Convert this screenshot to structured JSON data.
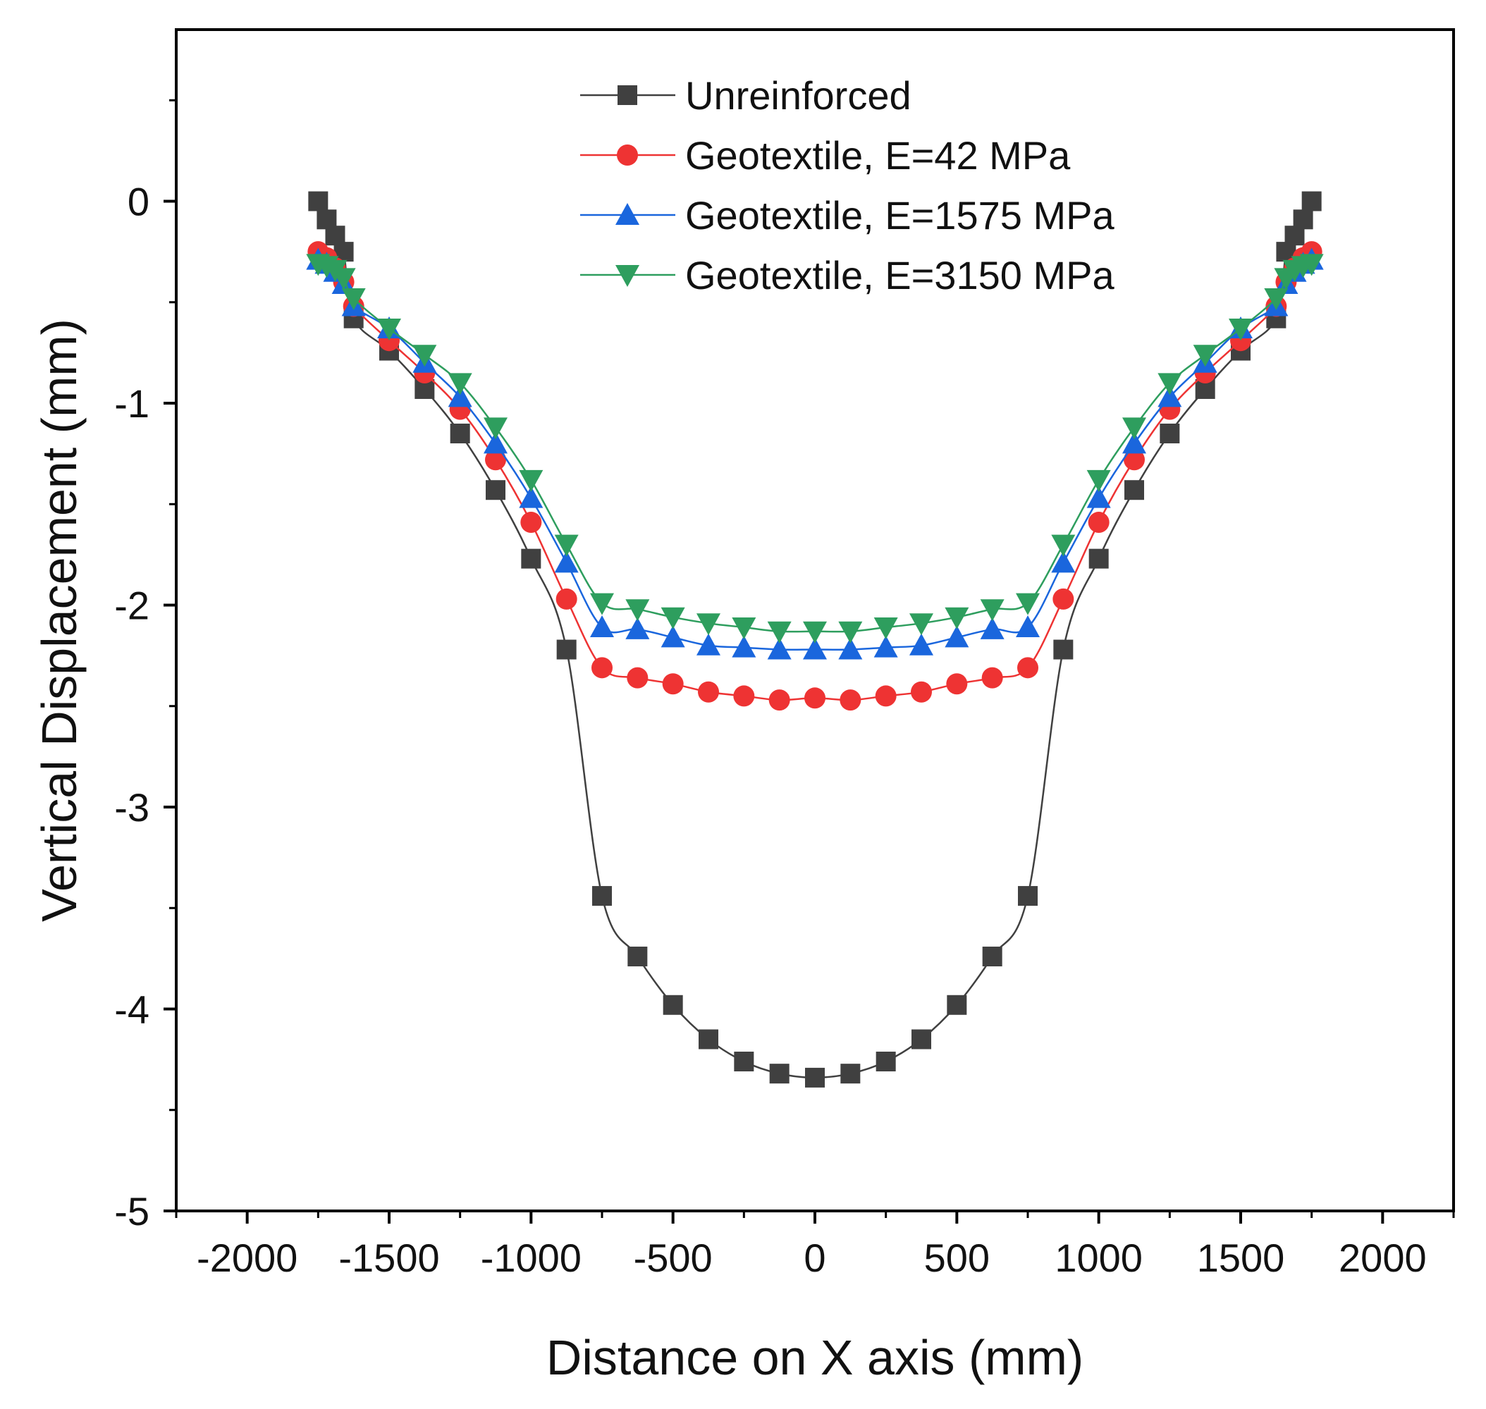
{
  "chart_data": {
    "type": "line",
    "title": "",
    "xlabel": "Distance on X axis (mm)",
    "ylabel": "Vertical Displacement (mm)",
    "xlim": [
      -2250,
      2250
    ],
    "ylim": [
      -5,
      0.85
    ],
    "xticks": [
      -2000,
      -1500,
      -1000,
      -500,
      0,
      500,
      1000,
      1500,
      2000
    ],
    "yticks": [
      0,
      -1,
      -2,
      -3,
      -4,
      -5
    ],
    "xtick_labels": [
      "-2000",
      "-1500",
      "-1000",
      "-500",
      "0",
      "500",
      "1000",
      "1500",
      "2000"
    ],
    "ytick_labels": [
      "0",
      "-1",
      "-2",
      "-3",
      "-4",
      "-5"
    ],
    "grid": false,
    "legend_position": "top-center",
    "series": [
      {
        "name": "Unreinforced",
        "color": "#404040",
        "marker": "square",
        "x": [
          -1750,
          -1720,
          -1690,
          -1660,
          -1625,
          -1500,
          -1375,
          -1250,
          -1125,
          -1000,
          -875,
          -750,
          -625,
          -500,
          -375,
          -250,
          -125,
          0,
          125,
          250,
          375,
          500,
          625,
          750,
          875,
          1000,
          1125,
          1250,
          1375,
          1500,
          1625,
          1660,
          1690,
          1720,
          1750
        ],
        "values": [
          0.0,
          -0.09,
          -0.17,
          -0.25,
          -0.58,
          -0.74,
          -0.93,
          -1.15,
          -1.43,
          -1.77,
          -2.22,
          -3.44,
          -3.74,
          -3.98,
          -4.15,
          -4.26,
          -4.32,
          -4.34,
          -4.32,
          -4.26,
          -4.15,
          -3.98,
          -3.74,
          -3.44,
          -2.22,
          -1.77,
          -1.43,
          -1.15,
          -0.93,
          -0.74,
          -0.58,
          -0.25,
          -0.17,
          -0.09,
          0.0
        ]
      },
      {
        "name": "Geotextile, E=42 MPa",
        "color": "#ee3333",
        "marker": "circle",
        "x": [
          -1750,
          -1720,
          -1690,
          -1660,
          -1625,
          -1500,
          -1375,
          -1250,
          -1125,
          -1000,
          -875,
          -750,
          -625,
          -500,
          -375,
          -250,
          -125,
          0,
          125,
          250,
          375,
          500,
          625,
          750,
          875,
          1000,
          1125,
          1250,
          1375,
          1500,
          1625,
          1660,
          1690,
          1720,
          1750
        ],
        "values": [
          -0.25,
          -0.28,
          -0.33,
          -0.4,
          -0.52,
          -0.69,
          -0.85,
          -1.03,
          -1.28,
          -1.59,
          -1.97,
          -2.31,
          -2.36,
          -2.39,
          -2.43,
          -2.45,
          -2.47,
          -2.46,
          -2.47,
          -2.45,
          -2.43,
          -2.39,
          -2.36,
          -2.31,
          -1.97,
          -1.59,
          -1.28,
          -1.03,
          -0.85,
          -0.69,
          -0.52,
          -0.4,
          -0.33,
          -0.28,
          -0.25
        ]
      },
      {
        "name": "Geotextile, E=1575 MPa",
        "color": "#1a66dd",
        "marker": "triangle-up",
        "x": [
          -1750,
          -1720,
          -1690,
          -1660,
          -1625,
          -1500,
          -1375,
          -1250,
          -1125,
          -1000,
          -875,
          -750,
          -625,
          -500,
          -375,
          -250,
          -125,
          0,
          125,
          250,
          375,
          500,
          625,
          750,
          875,
          1000,
          1125,
          1250,
          1375,
          1500,
          1625,
          1660,
          1690,
          1720,
          1750
        ],
        "values": [
          -0.29,
          -0.31,
          -0.35,
          -0.41,
          -0.52,
          -0.63,
          -0.8,
          -0.97,
          -1.2,
          -1.47,
          -1.79,
          -2.11,
          -2.12,
          -2.16,
          -2.2,
          -2.21,
          -2.22,
          -2.22,
          -2.22,
          -2.21,
          -2.2,
          -2.16,
          -2.12,
          -2.11,
          -1.79,
          -1.47,
          -1.2,
          -0.97,
          -0.8,
          -0.63,
          -0.52,
          -0.41,
          -0.35,
          -0.31,
          -0.29
        ]
      },
      {
        "name": "Geotextile, E=3150 MPa",
        "color": "#2e9e5e",
        "marker": "triangle-down",
        "x": [
          -1750,
          -1720,
          -1690,
          -1660,
          -1625,
          -1500,
          -1375,
          -1250,
          -1125,
          -1000,
          -875,
          -750,
          -625,
          -500,
          -375,
          -250,
          -125,
          0,
          125,
          250,
          375,
          500,
          625,
          750,
          875,
          1000,
          1125,
          1250,
          1375,
          1500,
          1625,
          1660,
          1690,
          1720,
          1750
        ],
        "values": [
          -0.31,
          -0.32,
          -0.34,
          -0.38,
          -0.48,
          -0.63,
          -0.76,
          -0.9,
          -1.12,
          -1.38,
          -1.7,
          -1.99,
          -2.02,
          -2.06,
          -2.09,
          -2.11,
          -2.13,
          -2.13,
          -2.13,
          -2.11,
          -2.09,
          -2.06,
          -2.02,
          -1.99,
          -1.7,
          -1.38,
          -1.12,
          -0.9,
          -0.76,
          -0.63,
          -0.48,
          -0.38,
          -0.34,
          -0.32,
          -0.31
        ]
      }
    ]
  }
}
